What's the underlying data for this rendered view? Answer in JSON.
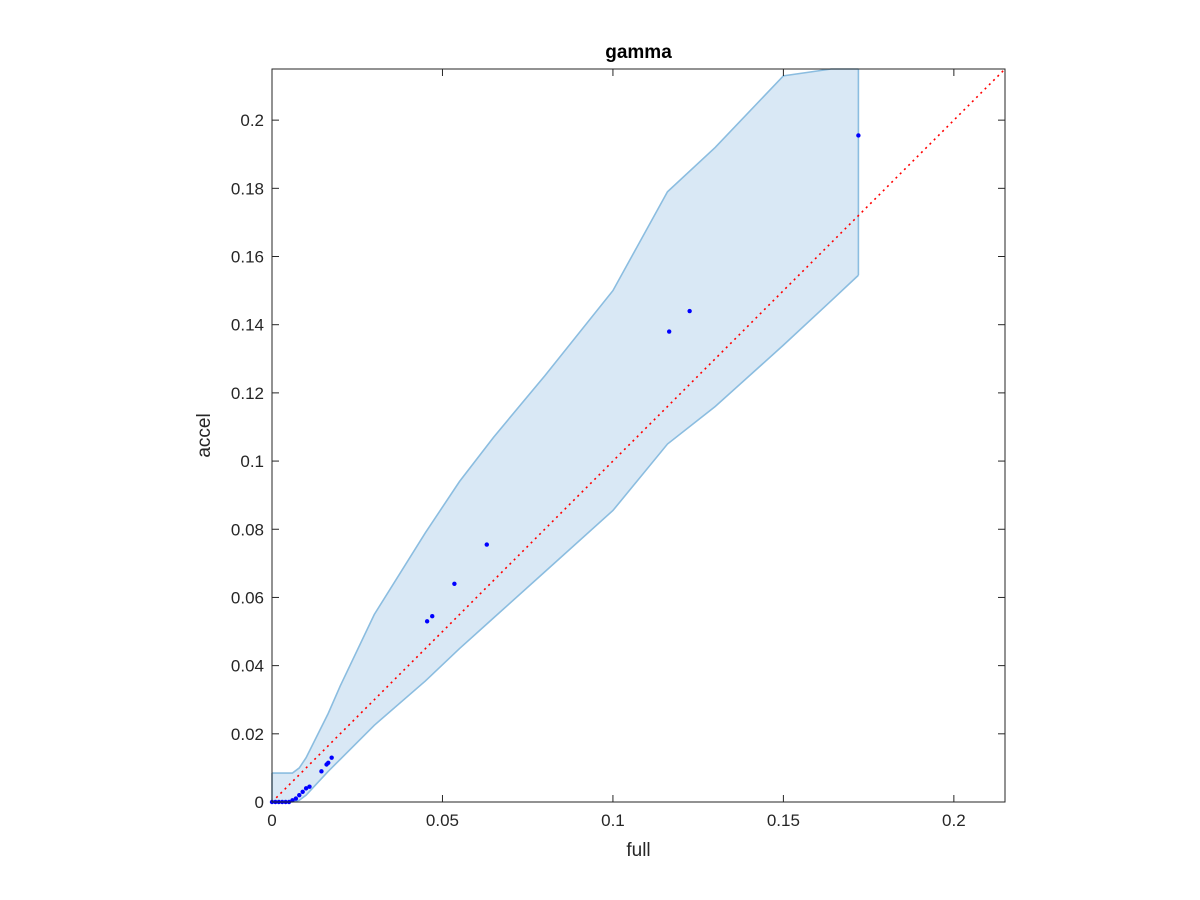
{
  "chart_data": {
    "type": "scatter",
    "title": "gamma",
    "xlabel": "full",
    "ylabel": "accel",
    "xlim": [
      0,
      0.215
    ],
    "ylim": [
      0,
      0.215
    ],
    "grid": false,
    "x_ticks": [
      0,
      0.05,
      0.1,
      0.15,
      0.2
    ],
    "x_tick_labels": [
      "0",
      "0.05",
      "0.1",
      "0.15",
      "0.2"
    ],
    "y_ticks": [
      0,
      0.02,
      0.04,
      0.06,
      0.08,
      0.1,
      0.12,
      0.14,
      0.16,
      0.18,
      0.2
    ],
    "y_tick_labels": [
      "0",
      "0.02",
      "0.04",
      "0.06",
      "0.08",
      "0.1",
      "0.12",
      "0.14",
      "0.16",
      "0.18",
      "0.2"
    ],
    "series": [
      {
        "kind": "scatter",
        "color": "#0000ff",
        "x": [
          0,
          0.001,
          0.002,
          0.003,
          0.004,
          0.005,
          0.006,
          0.007,
          0.008,
          0.009,
          0.01,
          0.011,
          0.0145,
          0.016,
          0.0165,
          0.0175,
          0.0455,
          0.047,
          0.0535,
          0.063,
          0.1165,
          0.1225,
          0.172
        ],
        "y": [
          0,
          0,
          0,
          0,
          0,
          0,
          0.0005,
          0.001,
          0.002,
          0.003,
          0.004,
          0.0045,
          0.009,
          0.011,
          0.0115,
          0.013,
          0.053,
          0.0545,
          0.064,
          0.0755,
          0.138,
          0.144,
          0.1955
        ]
      },
      {
        "kind": "reference-line",
        "color": "#ff0000",
        "style": "dotted",
        "x": [
          0,
          0.215
        ],
        "y": [
          0,
          0.215
        ]
      },
      {
        "kind": "band",
        "fill": "#d9e8f5",
        "stroke": "#8bbde0",
        "x": [
          0,
          0.006,
          0.008,
          0.01,
          0.0165,
          0.02,
          0.03,
          0.045,
          0.055,
          0.065,
          0.08,
          0.1,
          0.116,
          0.13,
          0.15,
          0.164,
          0.172
        ],
        "upper": [
          0.0085,
          0.0085,
          0.01,
          0.013,
          0.026,
          0.034,
          0.055,
          0.079,
          0.094,
          0.107,
          0.125,
          0.15,
          0.179,
          0.192,
          0.213,
          0.215,
          0.215
        ],
        "lower": [
          0,
          0,
          0.0005,
          0.002,
          0.009,
          0.0125,
          0.0225,
          0.0355,
          0.045,
          0.054,
          0.0675,
          0.0855,
          0.105,
          0.116,
          0.134,
          0.147,
          0.1545
        ]
      }
    ]
  }
}
